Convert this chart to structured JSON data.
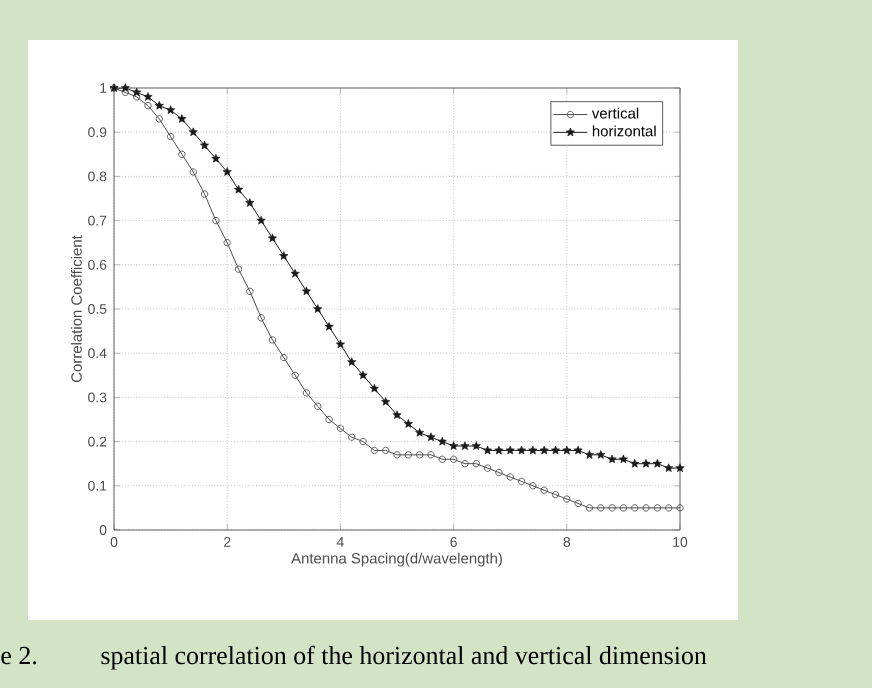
{
  "chart_data": {
    "type": "line",
    "xlabel": "Antenna Spacing(d/wavelength)",
    "ylabel": "Correlation Coefficient",
    "x": [
      0,
      0.2,
      0.4,
      0.6,
      0.8,
      1,
      1.2,
      1.4,
      1.6,
      1.8,
      2,
      2.2,
      2.4,
      2.6,
      2.8,
      3,
      3.2,
      3.4,
      3.6,
      3.8,
      4,
      4.2,
      4.4,
      4.6,
      4.8,
      5,
      5.2,
      5.4,
      5.6,
      5.8,
      6,
      6.2,
      6.4,
      6.6,
      6.8,
      7,
      7.2,
      7.4,
      7.6,
      7.8,
      8,
      8.2,
      8.4,
      8.6,
      8.8,
      9,
      9.2,
      9.4,
      9.6,
      9.8,
      10
    ],
    "series": [
      {
        "name": "vertical",
        "color": "#4d4d4d",
        "marker": "circle",
        "values": [
          1.0,
          0.99,
          0.98,
          0.96,
          0.93,
          0.89,
          0.85,
          0.81,
          0.76,
          0.7,
          0.65,
          0.59,
          0.54,
          0.48,
          0.43,
          0.39,
          0.35,
          0.31,
          0.28,
          0.25,
          0.23,
          0.21,
          0.2,
          0.18,
          0.18,
          0.17,
          0.17,
          0.17,
          0.17,
          0.16,
          0.16,
          0.15,
          0.15,
          0.14,
          0.13,
          0.12,
          0.11,
          0.1,
          0.09,
          0.08,
          0.07,
          0.06,
          0.05,
          0.05,
          0.05,
          0.05,
          0.05,
          0.05,
          0.05,
          0.05,
          0.05
        ]
      },
      {
        "name": "horizontal",
        "color": "#1a1a1a",
        "marker": "star",
        "values": [
          1.0,
          1.0,
          0.99,
          0.98,
          0.96,
          0.95,
          0.93,
          0.9,
          0.87,
          0.84,
          0.81,
          0.77,
          0.74,
          0.7,
          0.66,
          0.62,
          0.58,
          0.54,
          0.5,
          0.46,
          0.42,
          0.38,
          0.35,
          0.32,
          0.29,
          0.26,
          0.24,
          0.22,
          0.21,
          0.2,
          0.19,
          0.19,
          0.19,
          0.18,
          0.18,
          0.18,
          0.18,
          0.18,
          0.18,
          0.18,
          0.18,
          0.18,
          0.17,
          0.17,
          0.16,
          0.16,
          0.15,
          0.15,
          0.15,
          0.14,
          0.14
        ]
      }
    ],
    "xlim": [
      0,
      10
    ],
    "ylim": [
      0,
      1
    ],
    "xticks": [
      0,
      2,
      4,
      6,
      8,
      10
    ],
    "yticks": [
      0,
      0.1,
      0.2,
      0.3,
      0.4,
      0.5,
      0.6,
      0.7,
      0.8,
      0.9,
      1
    ],
    "grid": true,
    "legend": "top right",
    "line_style": "solid",
    "annotations": [
      "e 2.",
      "spatial correlation of the horizontal and vertical dimension"
    ]
  }
}
